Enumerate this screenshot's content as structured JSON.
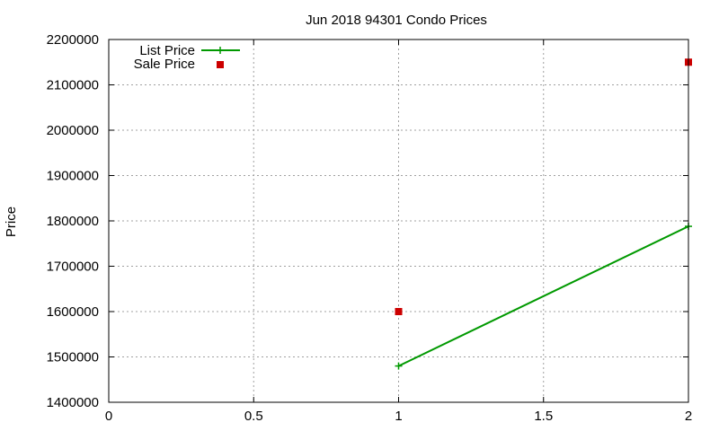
{
  "chart_data": {
    "type": "line",
    "title": "Jun 2018 94301 Condo Prices",
    "xlabel": "",
    "ylabel": "Price",
    "xlim": [
      0,
      2
    ],
    "ylim": [
      1400000,
      2200000
    ],
    "x_ticks": [
      0,
      0.5,
      1,
      1.5,
      2
    ],
    "x_tick_labels": [
      "0",
      "0.5",
      "1",
      "1.5",
      "2"
    ],
    "y_ticks": [
      1400000,
      1500000,
      1600000,
      1700000,
      1800000,
      1900000,
      2000000,
      2100000,
      2200000
    ],
    "y_tick_labels": [
      "1400000",
      "1500000",
      "1600000",
      "1700000",
      "1800000",
      "1900000",
      "2000000",
      "2100000",
      "2200000"
    ],
    "grid": true,
    "legend_position": "top-left",
    "series": [
      {
        "name": "List Price",
        "style": "line-with-plus-markers",
        "color": "#009900",
        "points": [
          {
            "x": 1,
            "y": 1480000
          },
          {
            "x": 2,
            "y": 1788000
          }
        ]
      },
      {
        "name": "Sale Price",
        "style": "square-markers",
        "color": "#cc0000",
        "points": [
          {
            "x": 1,
            "y": 1600000
          },
          {
            "x": 2,
            "y": 2150000
          }
        ]
      }
    ]
  }
}
